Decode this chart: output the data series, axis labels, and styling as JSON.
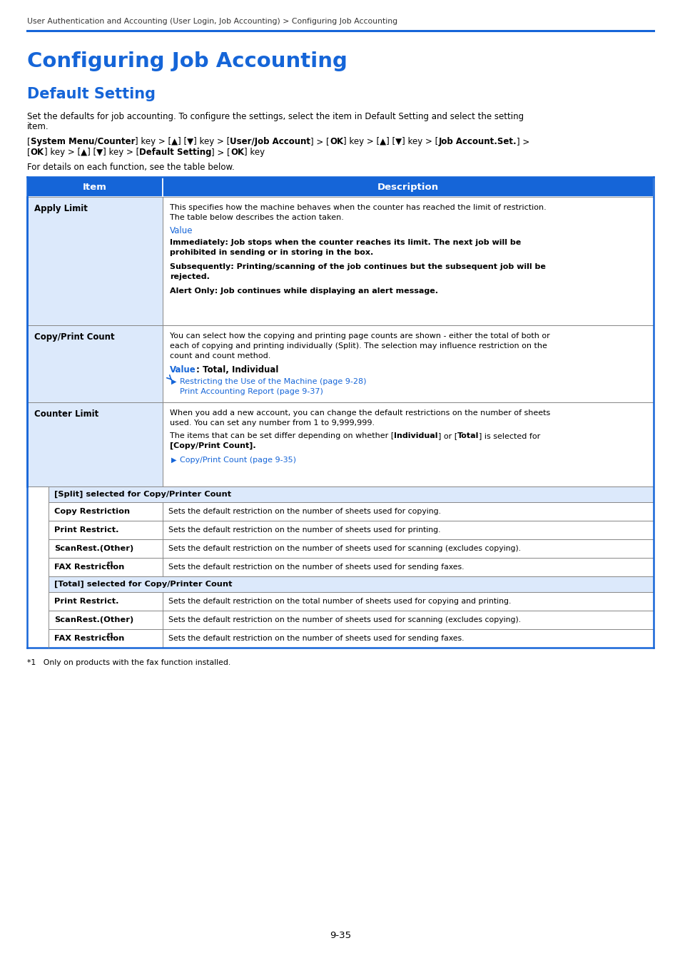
{
  "breadcrumb": "User Authentication and Accounting (User Login, Job Accounting) > Configuring Job Accounting",
  "main_title": "Configuring Job Accounting",
  "section_title": "Default Setting",
  "intro_line1": "Set the defaults for job accounting. To configure the settings, select the item in Default Setting and select the setting",
  "intro_line2": "item.",
  "nav_line1_parts": [
    [
      "[",
      false
    ],
    [
      "System Menu/Counter",
      true
    ],
    [
      "] key > [▲] [▼] key > [",
      false
    ],
    [
      "User/Job Account",
      true
    ],
    [
      "] > [",
      false
    ],
    [
      "OK",
      true
    ],
    [
      "] key > [▲] [▼] key > [",
      false
    ],
    [
      "Job Account.Set.",
      true
    ],
    [
      "] >",
      false
    ]
  ],
  "nav_line2_parts": [
    [
      "[",
      false
    ],
    [
      "OK",
      true
    ],
    [
      "] key > [▲] [▼] key > [",
      false
    ],
    [
      "Default Setting",
      true
    ],
    [
      "] > [",
      false
    ],
    [
      "OK",
      true
    ],
    [
      "] key",
      false
    ]
  ],
  "for_details": "For details on each function, see the table below.",
  "blue": "#1565d8",
  "light_blue_bg": "#dce9fb",
  "header_blue": "#1565d8",
  "page_num": "9-35",
  "footnote": "*1   Only on products with the fax function installed."
}
